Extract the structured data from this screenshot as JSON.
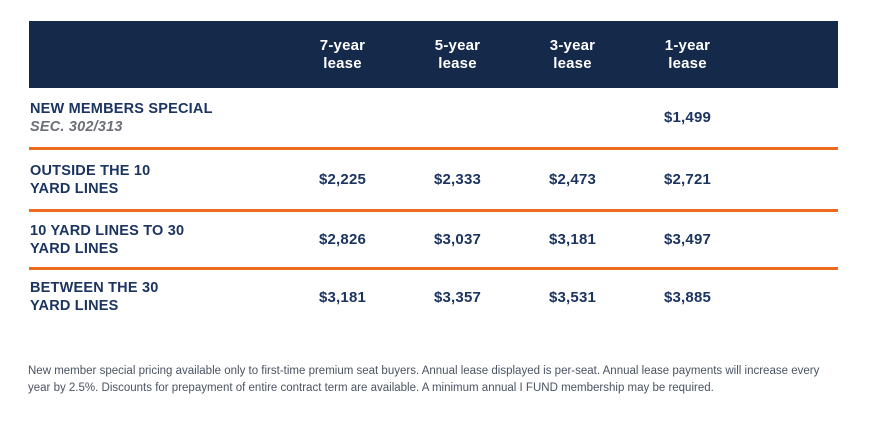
{
  "colors": {
    "header_navy": "#15294B",
    "text_navy": "#1C3460",
    "divider_orange": "#EE6A1C",
    "subtitle_gray": "#6C7076",
    "footnote_gray": "#4A5362"
  },
  "table": {
    "columns": [
      {
        "label": "7-year",
        "sub": "lease"
      },
      {
        "label": "5-year",
        "sub": "lease"
      },
      {
        "label": "3-year",
        "sub": "lease"
      },
      {
        "label": "1-year",
        "sub": "lease"
      }
    ],
    "rows": [
      {
        "title": "NEW MEMBERS SPECIAL",
        "subtitle": "SEC. 302/313",
        "prices": [
          "",
          "",
          "",
          "$1,499"
        ]
      },
      {
        "title": "OUTSIDE THE 10",
        "subtitle": "YARD LINES",
        "prices": [
          "$2,225",
          "$2,333",
          "$2,473",
          "$2,721"
        ]
      },
      {
        "title": "10 YARD LINES TO 30",
        "subtitle": "YARD LINES",
        "prices": [
          "$2,826",
          "$3,037",
          "$3,181",
          "$3,497"
        ]
      },
      {
        "title": "BETWEEN THE 30",
        "subtitle": "YARD LINES",
        "prices": [
          "$3,181",
          "$3,357",
          "$3,531",
          "$3,885"
        ]
      }
    ]
  },
  "footnote": "New member special pricing available only to first-time premium seat buyers. Annual lease displayed is per-seat. Annual lease payments will increase every year by 2.5%. Discounts for prepayment of entire contract term are available. A minimum annual I FUND membership may be required.",
  "chart_data": {
    "type": "table",
    "title": "Premium seat lease pricing",
    "columns": [
      "7-year lease",
      "5-year lease",
      "3-year lease",
      "1-year lease"
    ],
    "rows": [
      {
        "label": "NEW MEMBERS SPECIAL SEC. 302/313",
        "values": [
          null,
          null,
          null,
          1499
        ]
      },
      {
        "label": "OUTSIDE THE 10 YARD LINES",
        "values": [
          2225,
          2333,
          2473,
          2721
        ]
      },
      {
        "label": "10 YARD LINES TO 30 YARD LINES",
        "values": [
          2826,
          3037,
          3181,
          3497
        ]
      },
      {
        "label": "BETWEEN THE 30 YARD LINES",
        "values": [
          3181,
          3357,
          3531,
          3885
        ]
      }
    ],
    "currency": "USD",
    "footnote": "New member special pricing available only to first-time premium seat buyers. Annual lease displayed is per-seat. Annual lease payments will increase every year by 2.5%. Discounts for prepayment of entire contract term are available. A minimum annual I FUND membership may be required."
  }
}
